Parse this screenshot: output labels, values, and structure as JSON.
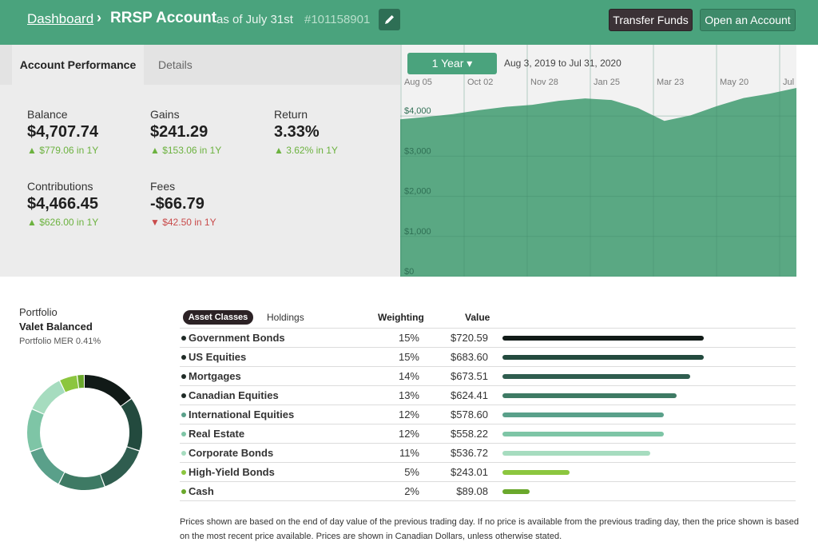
{
  "header": {
    "breadcrumb": "Dashboard",
    "separator": "›",
    "account_title": "RRSP Account",
    "as_of": "as of July 31st",
    "account_number": "#101158901",
    "transfer_label": "Transfer Funds",
    "open_label": "Open an Account"
  },
  "tabs": {
    "performance": "Account Performance",
    "details": "Details"
  },
  "stats": {
    "balance": {
      "label": "Balance",
      "value": "$4,707.74",
      "change": "▲ $779.06 in 1Y"
    },
    "gains": {
      "label": "Gains",
      "value": "$241.29",
      "change": "▲ $153.06 in 1Y"
    },
    "return": {
      "label": "Return",
      "value": "3.33%",
      "change": "▲ 3.62% in 1Y"
    },
    "contributions": {
      "label": "Contributions",
      "value": "$4,466.45",
      "change": "▲ $626.00 in 1Y"
    },
    "fees": {
      "label": "Fees",
      "value": "-$66.79",
      "change": "▼ $42.50 in 1Y"
    }
  },
  "chart_controls": {
    "range": "1 Year ▾",
    "date_range": "Aug 3, 2019 to Jul 31, 2020"
  },
  "chart_data": {
    "type": "area",
    "x_ticks": [
      "Aug 05",
      "Oct 02",
      "Nov 28",
      "Jan 25",
      "Mar 23",
      "May 20",
      "Jul"
    ],
    "y_ticks": [
      "$0",
      "$1,000",
      "$2,000",
      "$3,000",
      "$4,000"
    ],
    "ylim": [
      0,
      4900
    ],
    "x": [
      "Aug 05",
      "Sep",
      "Oct 02",
      "Nov",
      "Nov 28",
      "Dec",
      "Jan 25",
      "Feb",
      "Feb 20",
      "Mar 05",
      "Mar 12",
      "Mar 23",
      "Apr",
      "May 20",
      "Jun",
      "Jul"
    ],
    "values": [
      3920,
      3980,
      4050,
      4150,
      4230,
      4280,
      4380,
      4440,
      4400,
      4200,
      3880,
      4020,
      4250,
      4450,
      4560,
      4700
    ],
    "grid": true,
    "color": "#5aa883"
  },
  "portfolio": {
    "label": "Portfolio",
    "name": "Valet Balanced",
    "mer": "Portfolio MER 0.41%"
  },
  "table": {
    "tab_asset": "Asset Classes",
    "tab_holdings": "Holdings",
    "col_weight": "Weighting",
    "col_value": "Value",
    "rows": [
      {
        "name": "Government Bonds",
        "weight": "15%",
        "value": "$720.59",
        "color": "#111a17",
        "pct": 15
      },
      {
        "name": "US Equities",
        "weight": "15%",
        "value": "$683.60",
        "color": "#234a3e",
        "pct": 15
      },
      {
        "name": "Mortgages",
        "weight": "14%",
        "value": "$673.51",
        "color": "#2f5d4f",
        "pct": 14
      },
      {
        "name": "Canadian Equities",
        "weight": "13%",
        "value": "$624.41",
        "color": "#3e7a64",
        "pct": 13
      },
      {
        "name": "International Equities",
        "weight": "12%",
        "value": "$578.60",
        "color": "#5aa08a",
        "pct": 12
      },
      {
        "name": "Real Estate",
        "weight": "12%",
        "value": "$558.22",
        "color": "#7ec5a6",
        "pct": 12
      },
      {
        "name": "Corporate Bonds",
        "weight": "11%",
        "value": "$536.72",
        "color": "#a6dcbf",
        "pct": 11
      },
      {
        "name": "High-Yield Bonds",
        "weight": "5%",
        "value": "$243.01",
        "color": "#8cc63f",
        "pct": 5
      },
      {
        "name": "Cash",
        "weight": "2%",
        "value": "$89.08",
        "color": "#6aa82c",
        "pct": 2
      }
    ]
  },
  "footnote": "Prices shown are based on the end of day value of the previous trading day. If no price is available from the previous trading day, then the price shown is based on the most recent price available. Prices are shown in Canadian Dollars, unless otherwise stated."
}
